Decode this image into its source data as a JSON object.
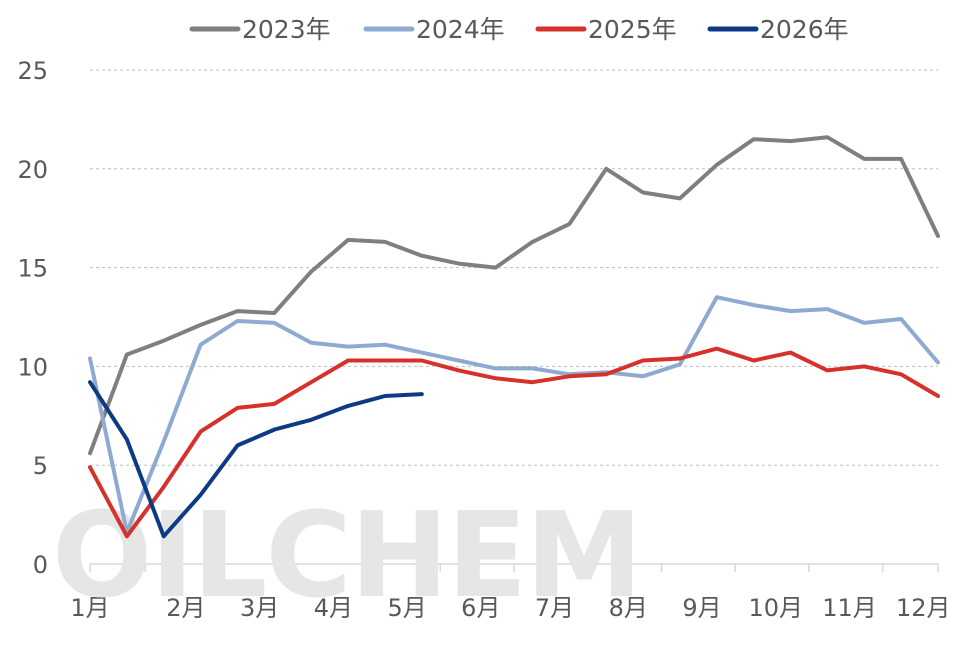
{
  "watermark": "OILCHEM",
  "chart_data": {
    "type": "line",
    "title": "",
    "xlabel": "",
    "ylabel": "",
    "ylim": [
      0,
      25
    ],
    "yticks": [
      0,
      5,
      10,
      15,
      20,
      25
    ],
    "grid": true,
    "legend_position": "top",
    "points_per_month": 2,
    "x_tick_labels": [
      "1月",
      "2月",
      "3月",
      "4月",
      "5月",
      "6月",
      "7月",
      "8月",
      "9月",
      "10月",
      "11月",
      "12月"
    ],
    "series": [
      {
        "name": "2023年",
        "color": "#7f7f7f",
        "values": [
          5.6,
          10.6,
          11.3,
          12.1,
          12.8,
          12.7,
          14.8,
          16.4,
          16.3,
          15.6,
          15.2,
          15.0,
          16.3,
          17.2,
          20.0,
          18.8,
          18.5,
          20.2,
          21.5,
          21.4,
          21.6,
          20.5,
          20.5,
          16.6
        ]
      },
      {
        "name": "2024年",
        "color": "#8eaad1",
        "values": [
          10.4,
          1.6,
          6.2,
          11.1,
          12.3,
          12.2,
          11.2,
          11.0,
          11.1,
          10.7,
          10.3,
          9.9,
          9.9,
          9.6,
          9.7,
          9.5,
          10.1,
          13.5,
          13.1,
          12.8,
          12.9,
          12.2,
          12.4,
          10.2
        ]
      },
      {
        "name": "2025年",
        "color": "#d6312b",
        "values": [
          4.9,
          1.4,
          3.9,
          6.7,
          7.9,
          8.1,
          9.2,
          10.3,
          10.3,
          10.3,
          9.8,
          9.4,
          9.2,
          9.5,
          9.6,
          10.3,
          10.4,
          10.9,
          10.3,
          10.7,
          9.8,
          10.0,
          9.6,
          8.5
        ]
      },
      {
        "name": "2026年",
        "color": "#0d3a85",
        "values": [
          9.2,
          6.3,
          1.4,
          3.5,
          6.0,
          6.8,
          7.3,
          8.0,
          8.5,
          8.6
        ]
      }
    ]
  }
}
